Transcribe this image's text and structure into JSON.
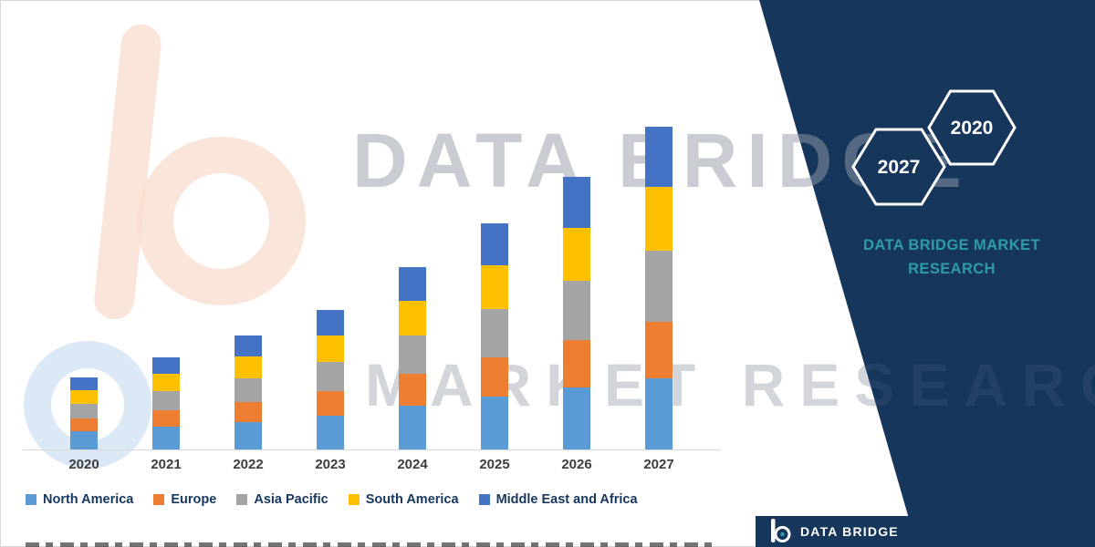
{
  "watermark": {
    "line1": "DATA BRIDGE",
    "line2": "MARKET RESEARCH"
  },
  "side_panel": {
    "hex_front_year": "2027",
    "hex_back_year": "2020",
    "brand_line1": "DATA BRIDGE MARKET",
    "brand_line2": "RESEARCH",
    "panel_color": "#17365C",
    "accent_teal": "#2E9CA6"
  },
  "footer": {
    "brand": "DATA BRIDGE"
  },
  "chart_data": {
    "type": "bar",
    "stacked": true,
    "title": "",
    "xlabel": "",
    "ylabel": "",
    "y_axis_visible": false,
    "grid": false,
    "legend_position": "bottom",
    "axis_line_color": "#D9D9D9",
    "values_unit": "relative market size (no value axis shown; estimated from bar heights)",
    "categories": [
      "2020",
      "2021",
      "2022",
      "2023",
      "2024",
      "2025",
      "2026",
      "2027"
    ],
    "series": [
      {
        "name": "North America",
        "color": "#5B9BD5",
        "values": [
          20,
          25,
          30,
          37,
          48,
          58,
          68,
          78
        ]
      },
      {
        "name": "Europe",
        "color": "#ED7D31",
        "values": [
          14,
          18,
          22,
          27,
          35,
          43,
          52,
          62
        ]
      },
      {
        "name": "Asia Pacific",
        "color": "#A5A5A5",
        "values": [
          16,
          21,
          26,
          32,
          42,
          53,
          65,
          78
        ]
      },
      {
        "name": "South America",
        "color": "#FFC000",
        "values": [
          15,
          19,
          24,
          29,
          38,
          48,
          58,
          70
        ]
      },
      {
        "name": "Middle East and Africa",
        "color": "#4472C4",
        "values": [
          14,
          18,
          23,
          28,
          37,
          46,
          56,
          66
        ]
      }
    ]
  }
}
